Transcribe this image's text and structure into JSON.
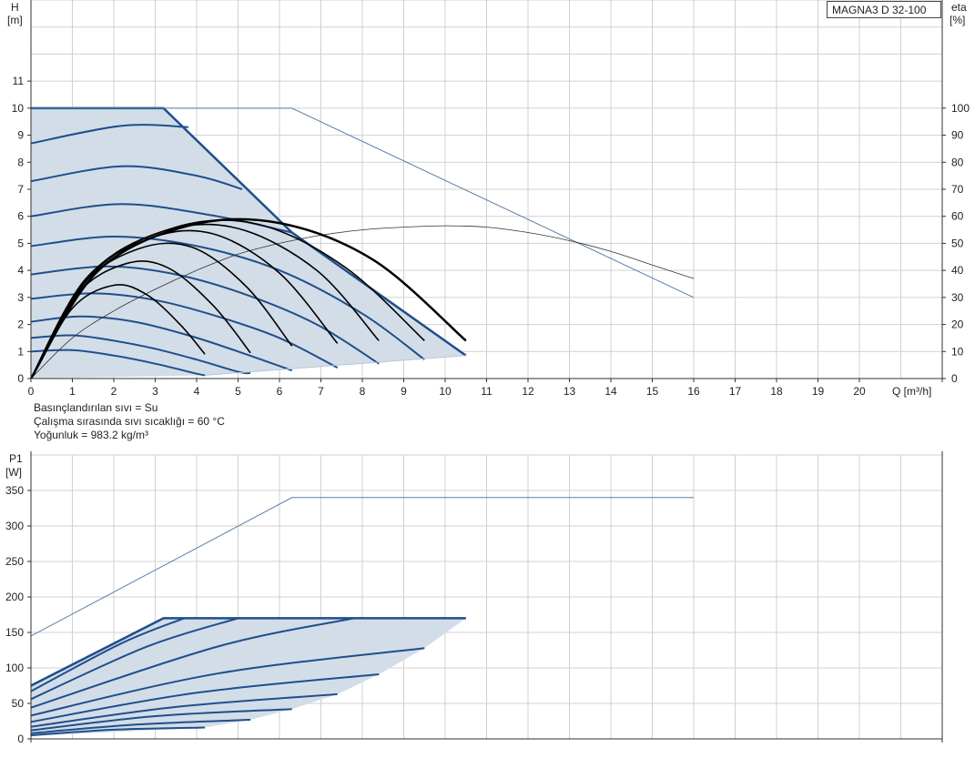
{
  "title": "MAGNA3 D 32-100",
  "fluid_info": [
    "Basınçlandırılan sıvı = Su",
    "Çalışma sırasında sıvı sıcaklığı = 60 °C",
    "Yoğunluk = 983.2 kg/m³"
  ],
  "colors": {
    "area_fill": "#d3dde7",
    "curve_blue": "#1f4e8c",
    "curve_black": "#000000",
    "max_line": "#5b7fa8",
    "eta_line": "#333333",
    "grid": "#d0d0d0"
  },
  "chart_data": [
    {
      "type": "line",
      "id": "head",
      "ylabel_main": "H",
      "ylabel_unit": "[m]",
      "y2label_main": "eta",
      "y2label_unit": "[%]",
      "xlabel": "Q [m³/h]",
      "xlim": [
        0,
        22
      ],
      "ylim": [
        0,
        14
      ],
      "y2lim": [
        0,
        140
      ],
      "x_ticks": [
        0,
        1,
        2,
        3,
        4,
        5,
        6,
        7,
        8,
        9,
        10,
        11,
        12,
        13,
        14,
        15,
        16,
        17,
        18,
        19,
        20
      ],
      "y_ticks": [
        0,
        1,
        2,
        3,
        4,
        5,
        6,
        7,
        8,
        9,
        10,
        11
      ],
      "y2_ticks": [
        0,
        10,
        20,
        30,
        40,
        50,
        60,
        70,
        80,
        90,
        100
      ],
      "grid": true,
      "envelope": [
        [
          0,
          10
        ],
        [
          3.2,
          10
        ],
        [
          6.3,
          5.4
        ],
        [
          10.5,
          0.85
        ],
        [
          4.2,
          0.12
        ],
        [
          0,
          0
        ]
      ],
      "speed_curves": [
        {
          "q": [
            0,
            1.0,
            2.0,
            3.0,
            4.0,
            4.2
          ],
          "h": [
            1.0,
            1.05,
            0.85,
            0.55,
            0.18,
            0.12
          ]
        },
        {
          "q": [
            0,
            1.0,
            2.0,
            3.0,
            4.0,
            5.0,
            5.3
          ],
          "h": [
            1.5,
            1.6,
            1.4,
            1.1,
            0.7,
            0.25,
            0.2
          ]
        },
        {
          "q": [
            0,
            1.2,
            2.5,
            3.8,
            5.0,
            6.3
          ],
          "h": [
            2.1,
            2.3,
            2.1,
            1.6,
            1.0,
            0.3
          ]
        },
        {
          "q": [
            0,
            1.5,
            3.0,
            4.5,
            6.0,
            7.4
          ],
          "h": [
            2.95,
            3.15,
            2.9,
            2.3,
            1.5,
            0.4
          ]
        },
        {
          "q": [
            0,
            1.8,
            3.5,
            5.2,
            6.9,
            8.4
          ],
          "h": [
            3.85,
            4.15,
            3.85,
            3.1,
            2.0,
            0.55
          ]
        },
        {
          "q": [
            0,
            2.0,
            4.0,
            6.0,
            8.0,
            9.5
          ],
          "h": [
            4.9,
            5.25,
            4.9,
            4.0,
            2.4,
            0.7
          ]
        },
        {
          "q": [
            0,
            2.2,
            4.5,
            6.3
          ],
          "h": [
            6.0,
            6.45,
            6.0,
            5.4
          ]
        },
        {
          "q": [
            0,
            2.2,
            4.0,
            5.1
          ],
          "h": [
            7.3,
            7.85,
            7.5,
            7.0
          ]
        },
        {
          "q": [
            0,
            2.2,
            3.8
          ],
          "h": [
            8.7,
            9.35,
            9.3
          ]
        }
      ],
      "duty_curves": [
        {
          "q": [
            0,
            1.0,
            2.0,
            2.8,
            3.6,
            4.2
          ],
          "h": [
            0,
            2.6,
            3.45,
            3.1,
            2.0,
            0.9
          ]
        },
        {
          "q": [
            0,
            1.1,
            2.3,
            3.3,
            4.4,
            5.3
          ],
          "h": [
            0,
            3.1,
            4.25,
            4.1,
            2.7,
            0.95
          ]
        },
        {
          "q": [
            0,
            1.2,
            2.6,
            3.9,
            5.2,
            6.3
          ],
          "h": [
            0,
            3.4,
            4.8,
            4.85,
            3.4,
            1.2
          ]
        },
        {
          "q": [
            0,
            1.3,
            2.9,
            4.4,
            6.0,
            7.4
          ],
          "h": [
            0,
            3.65,
            5.2,
            5.35,
            3.9,
            1.3
          ]
        },
        {
          "q": [
            0,
            1.4,
            3.2,
            5.0,
            6.9,
            8.4
          ],
          "h": [
            0,
            3.8,
            5.45,
            5.55,
            4.0,
            1.4
          ]
        },
        {
          "q": [
            0,
            1.5,
            3.5,
            5.5,
            7.6,
            9.5
          ],
          "h": [
            0,
            3.9,
            5.6,
            5.7,
            4.1,
            1.4
          ]
        },
        {
          "q": [
            0,
            1.6,
            3.8,
            6.0,
            8.3,
            10.5
          ],
          "h": [
            0,
            3.95,
            5.65,
            5.75,
            4.35,
            1.4
          ]
        }
      ],
      "max_head_line": {
        "q": [
          0,
          6.3,
          16
        ],
        "h": [
          10,
          10,
          3.0
        ]
      },
      "eta_curve": {
        "q": [
          0,
          1,
          2,
          3,
          4,
          5,
          6,
          7,
          8,
          9,
          10,
          11,
          12,
          13,
          14,
          15,
          16
        ],
        "eta": [
          0,
          15,
          25,
          33,
          40,
          46,
          50,
          53,
          55,
          56,
          56.5,
          56,
          54,
          51,
          47,
          42,
          37
        ]
      }
    },
    {
      "type": "line",
      "id": "power",
      "ylabel_main": "P1",
      "ylabel_unit": "[W]",
      "xlim": [
        0,
        22
      ],
      "ylim": [
        0,
        400
      ],
      "y_ticks": [
        0,
        50,
        100,
        150,
        200,
        250,
        300,
        350
      ],
      "grid": true,
      "envelope": [
        [
          0,
          75
        ],
        [
          3.2,
          170
        ],
        [
          10.5,
          170
        ],
        [
          9.5,
          128
        ],
        [
          8.4,
          91
        ],
        [
          7.4,
          63
        ],
        [
          6.3,
          42
        ],
        [
          5.3,
          27
        ],
        [
          4.2,
          16
        ],
        [
          0,
          4
        ]
      ],
      "max_power_line": {
        "q": [
          0,
          6.3,
          16
        ],
        "p": [
          145,
          340,
          340
        ]
      },
      "power_curves": [
        {
          "q": [
            0,
            2.0,
            4.2
          ],
          "p": [
            5,
            13,
            16
          ]
        },
        {
          "q": [
            0,
            2.5,
            5.3
          ],
          "p": [
            8,
            20,
            27
          ]
        },
        {
          "q": [
            0,
            3.0,
            6.3
          ],
          "p": [
            12,
            32,
            42
          ]
        },
        {
          "q": [
            0,
            3.5,
            7.4
          ],
          "p": [
            17,
            45,
            63
          ]
        },
        {
          "q": [
            0,
            4.0,
            8.4
          ],
          "p": [
            24,
            65,
            91
          ]
        },
        {
          "q": [
            0,
            4.5,
            9.5
          ],
          "p": [
            33,
            92,
            128
          ]
        },
        {
          "q": [
            0,
            4.5,
            7.8
          ],
          "p": [
            44,
            130,
            170
          ]
        },
        {
          "q": [
            0,
            2.8,
            5.0
          ],
          "p": [
            56,
            130,
            170
          ]
        },
        {
          "q": [
            0,
            2.2,
            3.7
          ],
          "p": [
            67,
            135,
            170
          ]
        },
        {
          "q": [
            0,
            3.2,
            10.5
          ],
          "p": [
            75,
            170,
            170
          ]
        }
      ]
    }
  ]
}
